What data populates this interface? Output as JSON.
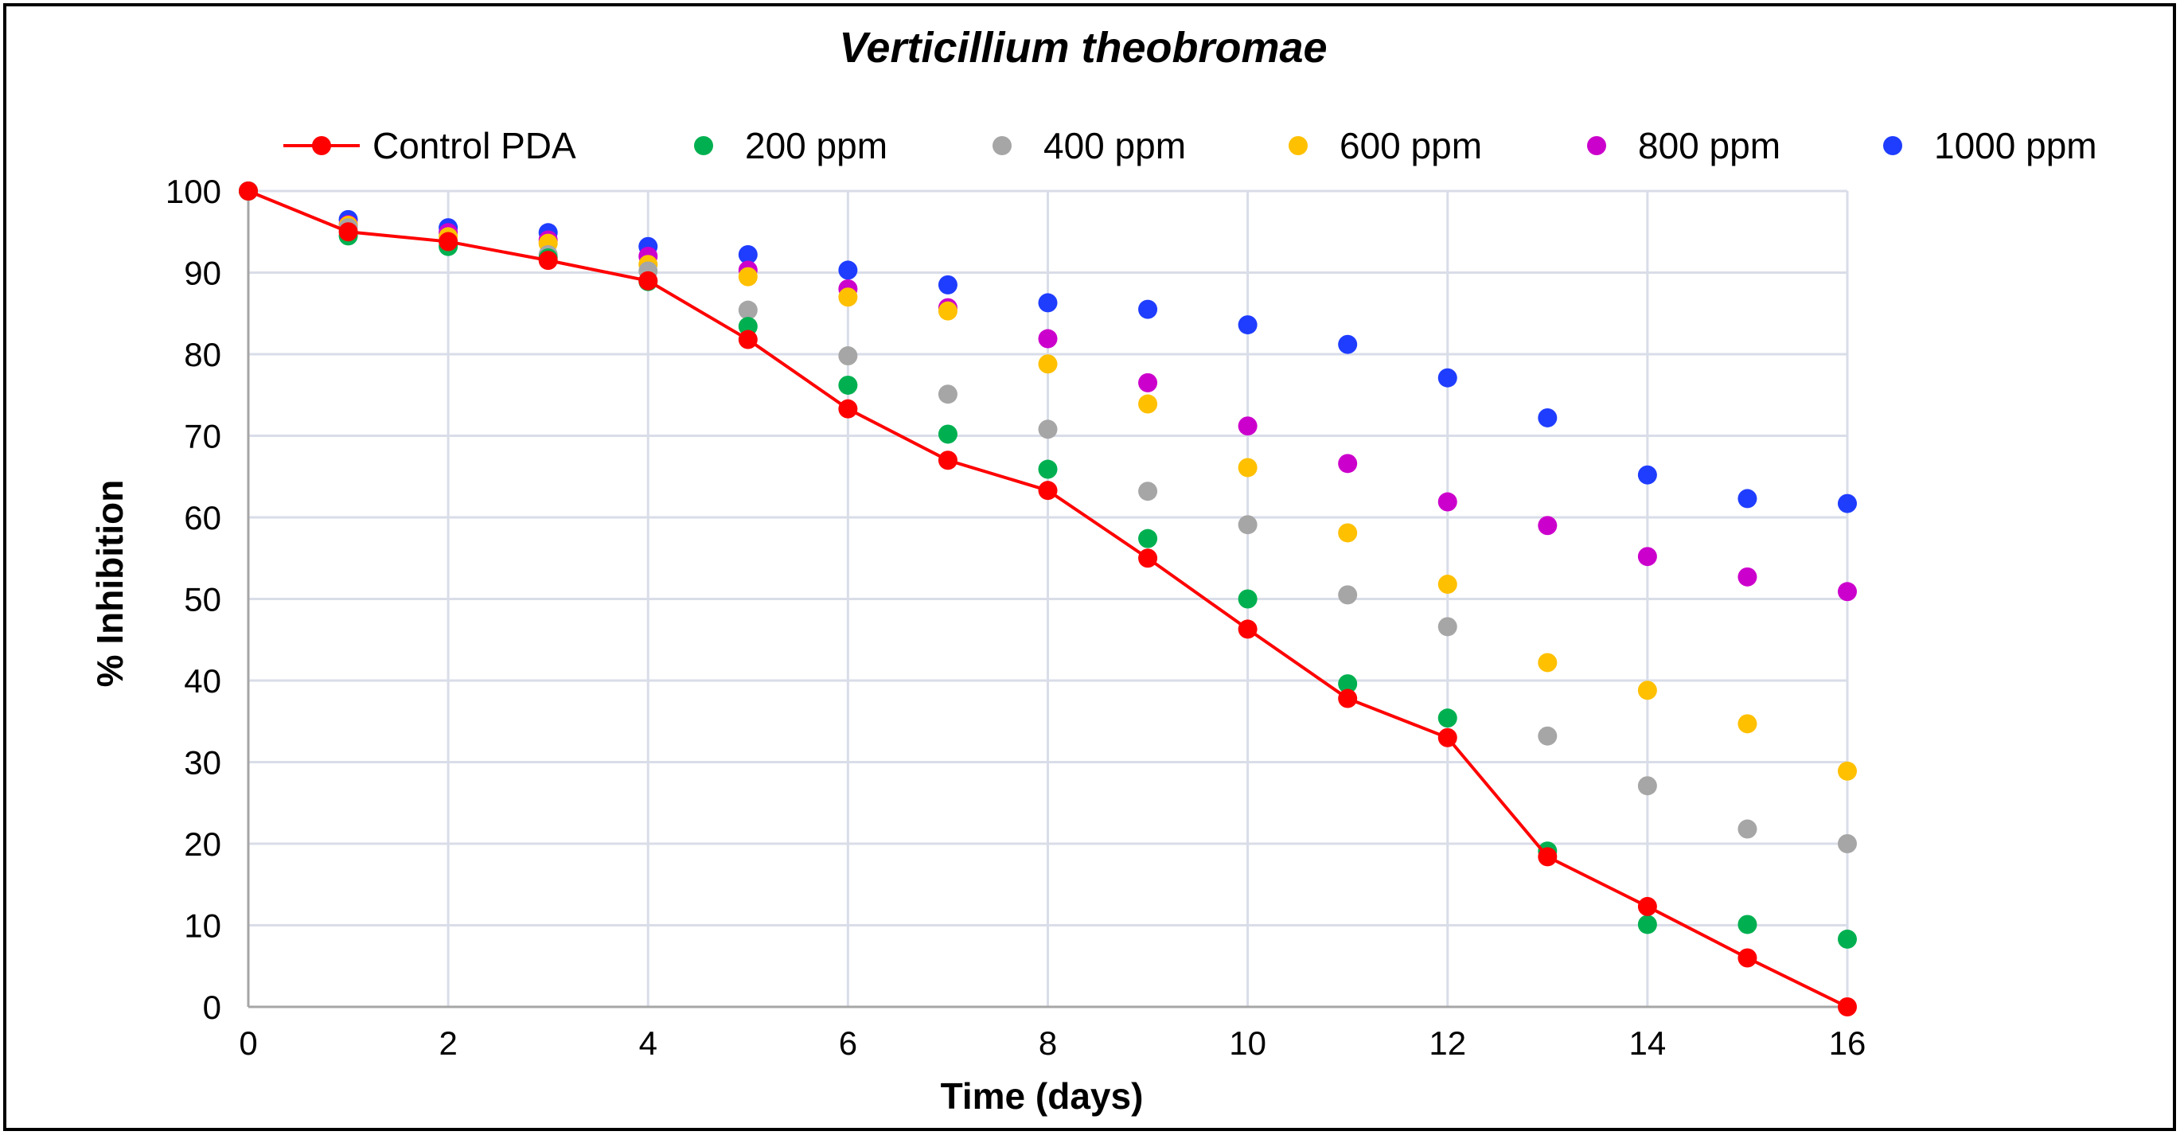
{
  "chart_data": {
    "type": "scatter",
    "title": "Verticillium theobromae",
    "xlabel": "Time (days)",
    "ylabel": "% Inhibition",
    "xlim": [
      0,
      16
    ],
    "ylim": [
      0,
      100
    ],
    "x_ticks": [
      0,
      2,
      4,
      6,
      8,
      10,
      12,
      14,
      16
    ],
    "y_ticks": [
      0,
      10,
      20,
      30,
      40,
      50,
      60,
      70,
      80,
      90,
      100
    ],
    "grid": "vertical",
    "legend_position": "top",
    "x": [
      0,
      1,
      2,
      3,
      4,
      5,
      6,
      7,
      8,
      9,
      10,
      11,
      12,
      13,
      14,
      15,
      16
    ],
    "series": [
      {
        "name": "Control PDA",
        "color": "#ff0000",
        "line": true,
        "values": [
          100,
          95,
          93.8,
          91.5,
          89,
          81.8,
          73.3,
          67,
          63.3,
          55,
          46.3,
          37.8,
          33,
          18.4,
          12.3,
          6,
          0
        ]
      },
      {
        "name": "200 ppm",
        "color": "#00b050",
        "line": false,
        "values": [
          100,
          94.5,
          93.2,
          91.8,
          88.9,
          83.4,
          76.2,
          70.2,
          65.9,
          57.4,
          50,
          39.6,
          35.4,
          19.1,
          10.1,
          10.1,
          8.3
        ]
      },
      {
        "name": "400 ppm",
        "color": "#a6a6a6",
        "line": false,
        "values": [
          100,
          95.5,
          93.8,
          92.2,
          90.2,
          85.4,
          79.8,
          75.1,
          70.8,
          63.2,
          59.1,
          50.5,
          46.6,
          33.2,
          27.1,
          21.8,
          20
        ]
      },
      {
        "name": "600 ppm",
        "color": "#ffc000",
        "line": false,
        "values": [
          100,
          95.8,
          94.4,
          93.6,
          91,
          89.5,
          87,
          85.3,
          78.8,
          73.9,
          66.1,
          58.1,
          51.8,
          42.2,
          38.8,
          34.7,
          28.9
        ]
      },
      {
        "name": "800 ppm",
        "color": "#cc00cc",
        "line": false,
        "values": [
          100,
          95.9,
          94.9,
          94,
          92,
          90.3,
          88,
          85.7,
          81.9,
          76.5,
          71.2,
          66.6,
          61.9,
          59,
          55.2,
          52.7,
          50.9
        ]
      },
      {
        "name": "1000 ppm",
        "color": "#1f3dff",
        "line": false,
        "values": [
          100,
          96.5,
          95.5,
          94.9,
          93.2,
          92.2,
          90.3,
          88.5,
          86.3,
          85.5,
          83.6,
          81.2,
          77.1,
          72.2,
          65.2,
          62.3,
          61.7
        ]
      }
    ]
  }
}
